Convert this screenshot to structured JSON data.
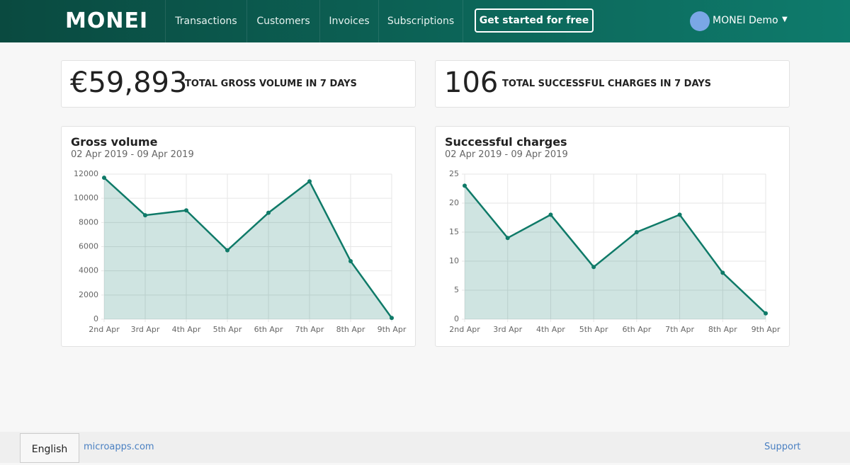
{
  "header": {
    "logo": "MONEI",
    "nav": [
      "Transactions",
      "Customers",
      "Invoices",
      "Subscriptions"
    ],
    "cta": "Get started for free",
    "user": "MONEI Demo"
  },
  "stats": [
    {
      "value": "€59,893",
      "label": "TOTAL GROSS VOLUME IN 7 DAYS"
    },
    {
      "value": "106",
      "label": "TOTAL SUCCESSFUL CHARGES IN 7 DAYS"
    }
  ],
  "chart_data": [
    {
      "type": "area",
      "title": "Gross volume",
      "subtitle": "02 Apr 2019 - 09 Apr 2019",
      "categories": [
        "2nd Apr",
        "3rd Apr",
        "4th Apr",
        "5th Apr",
        "6th Apr",
        "7th Apr",
        "8th Apr",
        "9th Apr"
      ],
      "values": [
        11700,
        8600,
        9000,
        5700,
        8800,
        11400,
        4800,
        100
      ],
      "color": "#0f7a68",
      "ylim": [
        0,
        12000
      ],
      "yticks": [
        0,
        2000,
        4000,
        6000,
        8000,
        10000,
        12000
      ],
      "grid": true
    },
    {
      "type": "area",
      "title": "Successful charges",
      "subtitle": "02 Apr 2019 - 09 Apr 2019",
      "categories": [
        "2nd Apr",
        "3rd Apr",
        "4th Apr",
        "5th Apr",
        "6th Apr",
        "7th Apr",
        "8th Apr",
        "9th Apr"
      ],
      "values": [
        23,
        14,
        18,
        9,
        15,
        18,
        8,
        1
      ],
      "color": "#0f7a68",
      "ylim": [
        0,
        25
      ],
      "yticks": [
        0,
        5,
        10,
        15,
        20,
        25
      ],
      "grid": true
    }
  ],
  "footer": {
    "language": "English",
    "link": "microapps.com",
    "support": "Support"
  }
}
